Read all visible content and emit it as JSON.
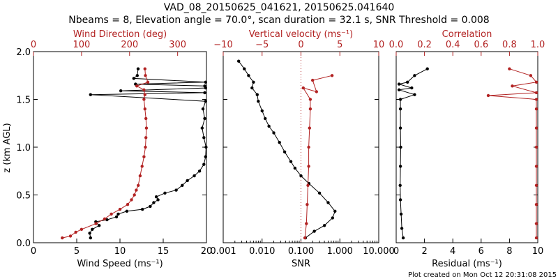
{
  "header": {
    "title_line1": "VAD_08_20150625_041621, 20150625.041640",
    "title_line2": "Nbeams = 8, Elevation angle = 70.0°, scan duration = 32.1 s, SNR Threshold = 0.008"
  },
  "footer": {
    "plot_created": "Plot created on Mon Oct 12 20:31:08 2015"
  },
  "colors": {
    "black": "#000000",
    "red": "#b22222"
  },
  "chart_data": [
    {
      "type": "scatter",
      "ylabel": "z (km AGL)",
      "ylim": [
        0,
        2
      ],
      "y_ticks": [
        "0.0",
        "0.5",
        "1.0",
        "1.5",
        "2.0"
      ],
      "x_bottom": {
        "label": "Wind Speed (ms⁻¹)",
        "lim": [
          0,
          20
        ],
        "ticks": [
          "0",
          "5",
          "10",
          "15",
          "20"
        ]
      },
      "x_top": {
        "label": "Wind Direction (deg)",
        "lim": [
          0,
          360
        ],
        "ticks": [
          "0",
          "100",
          "200",
          "300"
        ],
        "color": "#b22222"
      },
      "series": [
        {
          "axis": "bottom",
          "color": "#000000",
          "points": [
            [
              6.6,
              0.05
            ],
            [
              6.5,
              0.1
            ],
            [
              6.8,
              0.14
            ],
            [
              7.6,
              0.18
            ],
            [
              7.2,
              0.22
            ],
            [
              8.5,
              0.24
            ],
            [
              9.6,
              0.27
            ],
            [
              9.8,
              0.3
            ],
            [
              10.8,
              0.33
            ],
            [
              12.6,
              0.35
            ],
            [
              13.5,
              0.38
            ],
            [
              13.9,
              0.42
            ],
            [
              14.4,
              0.45
            ],
            [
              14.2,
              0.48
            ],
            [
              15.2,
              0.52
            ],
            [
              16.5,
              0.55
            ],
            [
              17.2,
              0.6
            ],
            [
              17.8,
              0.65
            ],
            [
              18.6,
              0.7
            ],
            [
              19.2,
              0.75
            ],
            [
              19.7,
              0.82
            ],
            [
              19.9,
              0.9
            ],
            [
              19.95,
              1.0
            ],
            [
              19.7,
              1.1
            ],
            [
              19.5,
              1.2
            ],
            [
              19.8,
              1.3
            ],
            [
              19.6,
              1.4
            ],
            [
              19.9,
              1.48
            ],
            [
              6.6,
              1.55
            ],
            [
              19.8,
              1.57
            ],
            [
              10.1,
              1.59
            ],
            [
              19.9,
              1.62
            ],
            [
              19.8,
              1.64
            ],
            [
              11.8,
              1.66
            ],
            [
              19.9,
              1.68
            ],
            [
              11.6,
              1.72
            ],
            [
              12.0,
              1.75
            ],
            [
              12.1,
              1.82
            ]
          ]
        },
        {
          "axis": "top",
          "color": "#b22222",
          "points": [
            [
              60,
              0.05
            ],
            [
              77,
              0.07
            ],
            [
              88,
              0.11
            ],
            [
              100,
              0.14
            ],
            [
              130,
              0.2
            ],
            [
              148,
              0.25
            ],
            [
              162,
              0.3
            ],
            [
              180,
              0.35
            ],
            [
              196,
              0.4
            ],
            [
              204,
              0.45
            ],
            [
              210,
              0.5
            ],
            [
              214,
              0.55
            ],
            [
              218,
              0.6
            ],
            [
              222,
              0.7
            ],
            [
              226,
              0.8
            ],
            [
              230,
              0.9
            ],
            [
              233,
              1.0
            ],
            [
              234,
              1.1
            ],
            [
              235,
              1.2
            ],
            [
              234,
              1.3
            ],
            [
              232,
              1.4
            ],
            [
              230,
              1.5
            ],
            [
              232,
              1.55
            ],
            [
              230,
              1.6
            ],
            [
              215,
              1.64
            ],
            [
              238,
              1.68
            ],
            [
              233,
              1.75
            ],
            [
              232,
              1.82
            ]
          ]
        }
      ]
    },
    {
      "type": "scatter",
      "xscale": "log",
      "ylim": [
        0,
        2
      ],
      "x_bottom": {
        "label": "SNR",
        "lim": [
          0.001,
          10
        ],
        "ticks": [
          "0.001",
          "0.010",
          "0.100",
          "1.000",
          "10.000"
        ]
      },
      "x_top": {
        "label": "Vertical velocity (ms⁻¹)",
        "lim": [
          -10,
          10
        ],
        "ticks": [
          "−10",
          "−5",
          "0",
          "5",
          "10"
        ],
        "color": "#b22222"
      },
      "series": [
        {
          "axis": "bottom",
          "color": "#000000",
          "points": [
            [
              0.0025,
              1.9
            ],
            [
              0.0035,
              1.82
            ],
            [
              0.0045,
              1.75
            ],
            [
              0.006,
              1.68
            ],
            [
              0.0055,
              1.62
            ],
            [
              0.0075,
              1.55
            ],
            [
              0.008,
              1.48
            ],
            [
              0.01,
              1.38
            ],
            [
              0.012,
              1.3
            ],
            [
              0.015,
              1.22
            ],
            [
              0.02,
              1.15
            ],
            [
              0.028,
              1.05
            ],
            [
              0.038,
              0.95
            ],
            [
              0.055,
              0.85
            ],
            [
              0.07,
              0.78
            ],
            [
              0.1,
              0.7
            ],
            [
              0.16,
              0.62
            ],
            [
              0.3,
              0.52
            ],
            [
              0.5,
              0.42
            ],
            [
              0.75,
              0.33
            ],
            [
              0.65,
              0.26
            ],
            [
              0.4,
              0.18
            ],
            [
              0.22,
              0.12
            ],
            [
              0.13,
              0.05
            ]
          ]
        },
        {
          "axis": "top",
          "color": "#b22222",
          "points": [
            [
              0.5,
              0.05
            ],
            [
              0.7,
              0.2
            ],
            [
              0.8,
              0.4
            ],
            [
              0.9,
              0.6
            ],
            [
              1.0,
              0.8
            ],
            [
              1.0,
              1.0
            ],
            [
              1.1,
              1.2
            ],
            [
              1.2,
              1.4
            ],
            [
              1.2,
              1.5
            ],
            [
              0.3,
              1.62
            ],
            [
              2.0,
              1.58
            ],
            [
              1.5,
              1.7
            ],
            [
              4.0,
              1.75
            ]
          ]
        }
      ]
    },
    {
      "type": "scatter",
      "ylim": [
        0,
        2
      ],
      "x_bottom": {
        "label": "Residual (ms⁻¹)",
        "lim": [
          0,
          10
        ],
        "ticks": [
          "0",
          "2",
          "4",
          "6",
          "8",
          "10"
        ]
      },
      "x_top": {
        "label": "Correlation",
        "lim": [
          0,
          1
        ],
        "ticks": [
          "0.0",
          "0.2",
          "0.4",
          "0.6",
          "0.8",
          "1.0"
        ],
        "color": "#b22222"
      },
      "series": [
        {
          "axis": "bottom",
          "color": "#000000",
          "points": [
            [
              0.5,
              0.05
            ],
            [
              0.4,
              0.15
            ],
            [
              0.35,
              0.3
            ],
            [
              0.3,
              0.45
            ],
            [
              0.28,
              0.6
            ],
            [
              0.3,
              0.8
            ],
            [
              0.32,
              1.0
            ],
            [
              0.3,
              1.2
            ],
            [
              0.3,
              1.4
            ],
            [
              0.3,
              1.5
            ],
            [
              1.3,
              1.55
            ],
            [
              0.2,
              1.6
            ],
            [
              1.1,
              1.62
            ],
            [
              0.2,
              1.66
            ],
            [
              0.8,
              1.68
            ],
            [
              1.3,
              1.75
            ],
            [
              2.2,
              1.82
            ]
          ]
        },
        {
          "axis": "top",
          "color": "#b22222",
          "points": [
            [
              0.99,
              0.05
            ],
            [
              0.99,
              0.2
            ],
            [
              0.99,
              0.4
            ],
            [
              0.99,
              0.6
            ],
            [
              0.99,
              0.8
            ],
            [
              0.99,
              1.0
            ],
            [
              0.99,
              1.2
            ],
            [
              0.99,
              1.4
            ],
            [
              0.99,
              1.5
            ],
            [
              0.65,
              1.54
            ],
            [
              0.99,
              1.57
            ],
            [
              0.82,
              1.64
            ],
            [
              0.99,
              1.68
            ],
            [
              0.95,
              1.75
            ],
            [
              0.8,
              1.82
            ]
          ]
        }
      ]
    }
  ]
}
